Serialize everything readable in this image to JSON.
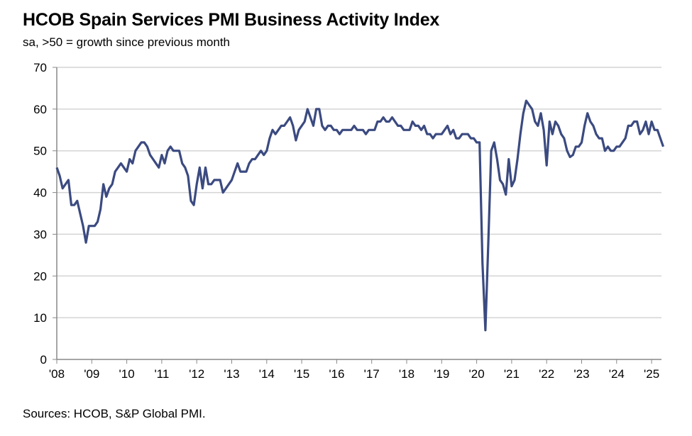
{
  "chart_data": {
    "type": "line",
    "title": "HCOB Spain Services PMI Business Activity Index",
    "subtitle": "sa, >50 = growth since previous month",
    "source": "Sources: HCOB, S&P Global PMI.",
    "xlabel": "",
    "ylabel": "",
    "ylim": [
      0,
      70
    ],
    "yticks": [
      0,
      10,
      20,
      30,
      40,
      50,
      60,
      70
    ],
    "xticks": [
      "'08",
      "'09",
      "'10",
      "'11",
      "'12",
      "'13",
      "'14",
      "'15",
      "'16",
      "'17",
      "'18",
      "'19",
      "'20",
      "'21",
      "'22",
      "'23",
      "'24",
      "'25"
    ],
    "grid": "horizontal",
    "legend": "none",
    "frequency": "monthly",
    "series": [
      {
        "color": "#3b4a80",
        "values_by_year": {
          "2008": [
            46,
            44,
            41,
            42,
            43,
            37,
            37,
            38,
            35,
            32,
            28,
            32
          ],
          "2009": [
            32,
            32,
            33,
            36,
            42,
            39,
            41,
            42,
            45,
            46,
            47,
            46
          ],
          "2010": [
            45,
            48,
            47,
            50,
            51,
            52,
            52,
            51,
            49,
            48,
            47,
            46
          ],
          "2011": [
            49,
            47,
            50,
            51,
            50,
            50,
            50,
            47,
            46,
            44,
            38,
            37
          ],
          "2012": [
            42,
            46,
            41,
            46,
            42,
            42,
            43,
            43,
            43,
            40,
            41,
            42
          ],
          "2013": [
            43,
            45,
            47,
            45,
            45,
            45,
            47,
            48,
            48,
            49,
            50,
            49
          ],
          "2014": [
            50,
            53,
            55,
            54,
            55,
            56,
            56,
            57,
            58,
            56,
            52.5,
            55
          ],
          "2015": [
            56,
            57,
            60,
            58,
            56,
            60,
            60,
            56,
            55,
            56,
            56,
            55
          ],
          "2016": [
            55,
            54,
            55,
            55,
            55,
            55,
            56,
            55,
            55,
            55,
            54,
            55
          ],
          "2017": [
            55,
            55,
            57,
            57,
            58,
            57,
            57,
            58,
            57,
            56,
            56,
            55
          ],
          "2018": [
            55,
            55,
            57,
            56,
            56,
            55,
            56,
            54,
            54,
            53,
            54,
            54
          ],
          "2019": [
            54,
            55,
            56,
            54,
            55,
            53,
            53,
            54,
            54,
            54,
            53,
            53
          ],
          "2020": [
            52,
            52,
            23,
            7,
            28,
            50,
            52,
            48,
            43,
            42,
            39.5,
            48
          ],
          "2021": [
            41.5,
            43,
            48,
            54,
            59,
            62,
            61,
            60,
            57,
            56,
            59,
            55
          ],
          "2022": [
            46.5,
            57,
            54,
            57,
            56,
            54,
            53,
            50,
            48.5,
            49,
            51,
            51
          ],
          "2023": [
            52,
            56,
            59,
            57,
            56,
            54,
            53,
            53,
            50,
            51,
            50,
            50
          ],
          "2024": [
            51,
            51,
            52,
            53,
            56,
            56,
            57,
            57,
            54,
            55,
            57,
            54
          ],
          "2025": [
            57,
            55,
            55,
            53,
            51
          ]
        }
      }
    ]
  }
}
